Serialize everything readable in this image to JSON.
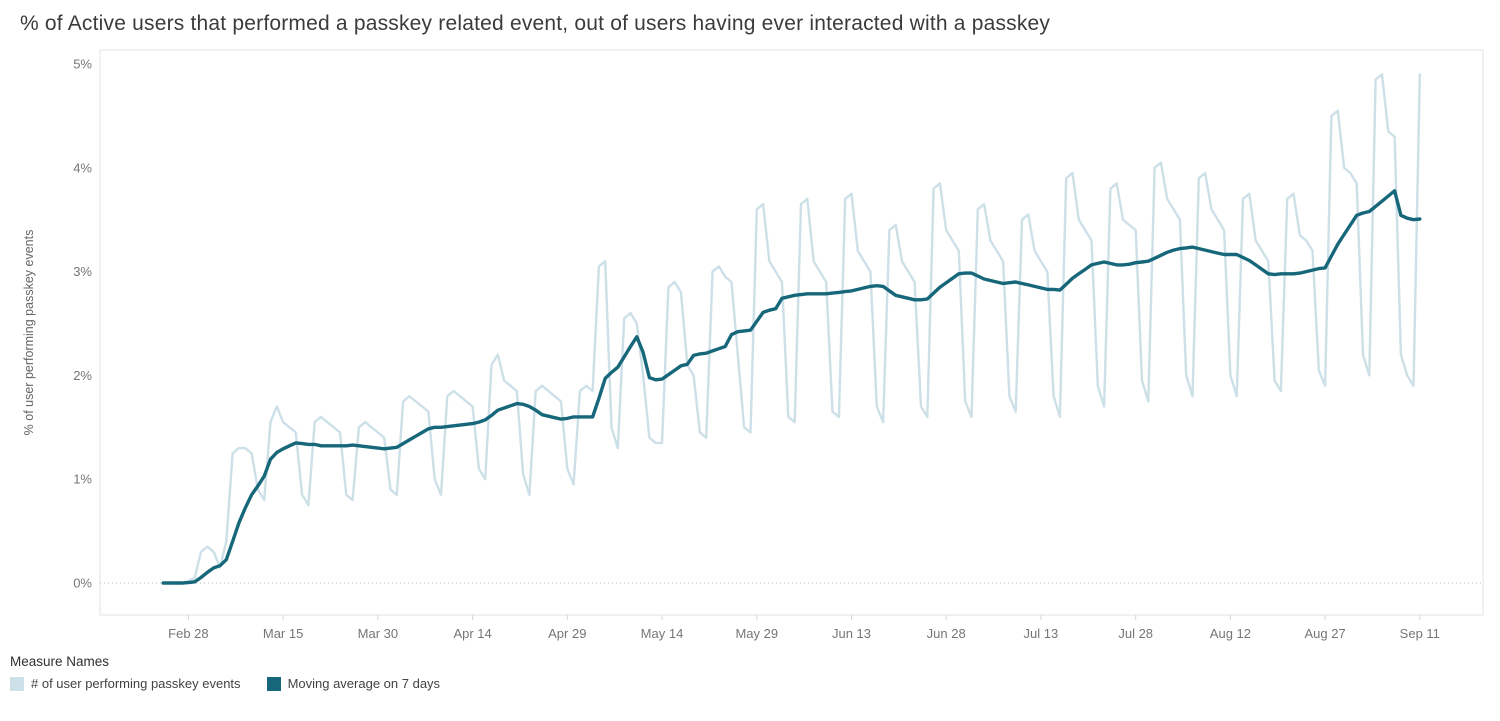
{
  "title": "% of Active users that performed a passkey related event, out of users having ever interacted with a passkey",
  "legend": {
    "title": "Measure Names",
    "items": [
      {
        "label": "# of user performing passkey events",
        "color": "#cde0e7"
      },
      {
        "label": "Moving average on 7 days",
        "color": "#17677a"
      }
    ]
  },
  "chart_data": {
    "type": "line",
    "title": "% of Active users that performed a passkey related event, out of users having ever interacted with a passkey",
    "xlabel": "",
    "ylabel": "% of user performing passkey events",
    "ylim": [
      0,
      5
    ],
    "y_ticks": [
      "0%",
      "1%",
      "2%",
      "3%",
      "4%",
      "5%"
    ],
    "x_tick_labels": [
      "Feb 28",
      "Mar 15",
      "Mar 30",
      "Apr 14",
      "Apr 29",
      "May 14",
      "May 29",
      "Jun 13",
      "Jun 28",
      "Jul 13",
      "Jul 28",
      "Aug 12",
      "Aug 27",
      "Sep 11"
    ],
    "x_tick_indices": [
      4,
      19,
      34,
      49,
      64,
      79,
      94,
      109,
      124,
      139,
      154,
      169,
      184,
      199
    ],
    "x_unit": "day",
    "x_range": [
      "Feb 24",
      "Sep 11"
    ],
    "grid": "zero-line-only",
    "legend_position": "bottom",
    "series": [
      {
        "name": "# of user performing passkey events",
        "color": "#cde0e7",
        "values": [
          0,
          0,
          0,
          0,
          0.02,
          0.05,
          0.3,
          0.35,
          0.3,
          0.15,
          0.4,
          1.25,
          1.3,
          1.3,
          1.25,
          0.9,
          0.8,
          1.55,
          1.7,
          1.55,
          1.5,
          1.45,
          0.85,
          0.75,
          1.55,
          1.6,
          1.55,
          1.5,
          1.45,
          0.85,
          0.8,
          1.5,
          1.55,
          1.5,
          1.45,
          1.4,
          0.9,
          0.85,
          1.75,
          1.8,
          1.75,
          1.7,
          1.65,
          1.0,
          0.85,
          1.8,
          1.85,
          1.8,
          1.75,
          1.7,
          1.1,
          1.0,
          2.1,
          2.2,
          1.95,
          1.9,
          1.85,
          1.05,
          0.85,
          1.85,
          1.9,
          1.85,
          1.8,
          1.75,
          1.1,
          0.95,
          1.85,
          1.9,
          1.85,
          3.05,
          3.1,
          1.5,
          1.3,
          2.55,
          2.6,
          2.5,
          2.0,
          1.4,
          1.35,
          1.35,
          2.85,
          2.9,
          2.8,
          2.1,
          2.0,
          1.45,
          1.4,
          3.0,
          3.05,
          2.95,
          2.9,
          2.2,
          1.5,
          1.45,
          3.6,
          3.65,
          3.1,
          3.0,
          2.9,
          1.6,
          1.55,
          3.65,
          3.7,
          3.1,
          3.0,
          2.9,
          1.65,
          1.6,
          3.7,
          3.75,
          3.2,
          3.1,
          3.0,
          1.7,
          1.55,
          3.4,
          3.45,
          3.1,
          3.0,
          2.9,
          1.7,
          1.6,
          3.8,
          3.85,
          3.4,
          3.3,
          3.2,
          1.75,
          1.6,
          3.6,
          3.65,
          3.3,
          3.2,
          3.1,
          1.8,
          1.65,
          3.5,
          3.55,
          3.2,
          3.1,
          3.0,
          1.8,
          1.6,
          3.9,
          3.95,
          3.5,
          3.4,
          3.3,
          1.9,
          1.7,
          3.8,
          3.85,
          3.5,
          3.45,
          3.4,
          1.95,
          1.75,
          4.0,
          4.05,
          3.7,
          3.6,
          3.5,
          2.0,
          1.8,
          3.9,
          3.95,
          3.6,
          3.5,
          3.4,
          2.0,
          1.8,
          3.7,
          3.75,
          3.3,
          3.2,
          3.1,
          1.95,
          1.85,
          3.7,
          3.75,
          3.35,
          3.3,
          3.2,
          2.05,
          1.9,
          4.5,
          4.55,
          4.0,
          3.95,
          3.85,
          2.2,
          2.0,
          4.85,
          4.9,
          4.35,
          4.3,
          2.2,
          2.0,
          1.9,
          4.9
        ]
      },
      {
        "name": "Moving average on 7 days",
        "color": "#17677a",
        "window": 7,
        "derived": "trailing 7-day moving average of first series"
      }
    ]
  }
}
